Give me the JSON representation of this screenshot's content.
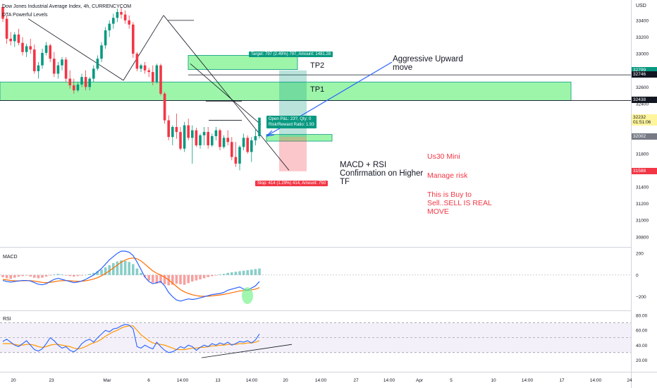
{
  "header": {
    "symbol": "Dow Jones Industrial Average Index, 4h, CURRENCYCOM",
    "indicator": "DTA Powerful Levels",
    "currency": "USD"
  },
  "chart_data": {
    "type": "candlestick",
    "price_axis": {
      "ticks": [
        "33400",
        "33200",
        "33000",
        "32800",
        "32600",
        "32400",
        "32200",
        "32000",
        "31800",
        "31600",
        "31400",
        "31200",
        "31000",
        "30800"
      ],
      "ylim": [
        30680,
        33560
      ]
    },
    "time_axis": {
      "ticks": [
        "20",
        "23",
        "Mar",
        "6",
        "14:00",
        "13",
        "14:00",
        "20",
        "14:00",
        "27",
        "14:00",
        "Apr",
        "5",
        "10",
        "14:00",
        "17",
        "14:00",
        "24"
      ]
    },
    "price_badges": [
      {
        "text": "32799",
        "color": "#089981"
      },
      {
        "text": "32746",
        "color": "#131722"
      },
      {
        "text": "32438",
        "color": "#131722"
      },
      {
        "text": "32232",
        "sub": "01:51:06",
        "color": "#fff59d"
      },
      {
        "text": "32002",
        "color": "#787b86"
      },
      {
        "text": "31588",
        "color": "#f23645"
      }
    ],
    "levels": [
      {
        "name": "TP2",
        "price": 32746
      },
      {
        "name": "TP1",
        "price": 32438
      }
    ],
    "position": {
      "entry": 32002,
      "target": 32799,
      "stop": 31588,
      "target_label": "Target: 797 (2.49%) 797, Amount: 1481.28",
      "open_label_1": "Open P&L: 23?, Qty: 0",
      "open_label_2": "Risk/Reward Ratio: 1.93",
      "stop_label": "Stop: 414 (1.29%) 414, Amount: 750"
    },
    "candles": [
      [
        33560,
        33600,
        33380,
        33420
      ],
      [
        33420,
        33460,
        33120,
        33180
      ],
      [
        33180,
        33260,
        33100,
        33150
      ],
      [
        33150,
        33260,
        33080,
        33230
      ],
      [
        33230,
        33300,
        33100,
        33130
      ],
      [
        33130,
        33200,
        32980,
        33020
      ],
      [
        33020,
        33120,
        32960,
        33090
      ],
      [
        33090,
        33180,
        33000,
        33050
      ],
      [
        33050,
        33110,
        32760,
        32790
      ],
      [
        32790,
        32900,
        32700,
        32860
      ],
      [
        32860,
        33060,
        32820,
        33010
      ],
      [
        33010,
        33140,
        32980,
        33100
      ],
      [
        33100,
        33120,
        32900,
        32940
      ],
      [
        32940,
        33020,
        32720,
        32760
      ],
      [
        32760,
        32900,
        32700,
        32860
      ],
      [
        32860,
        32960,
        32800,
        32930
      ],
      [
        32930,
        32960,
        32660,
        32700
      ],
      [
        32700,
        32800,
        32580,
        32620
      ],
      [
        32620,
        32700,
        32520,
        32560
      ],
      [
        32560,
        32660,
        32540,
        32630
      ],
      [
        32630,
        32760,
        32600,
        32720
      ],
      [
        32720,
        32800,
        32560,
        32600
      ],
      [
        32600,
        32720,
        32560,
        32700
      ],
      [
        32700,
        32860,
        32660,
        32820
      ],
      [
        32820,
        32980,
        32800,
        32940
      ],
      [
        32940,
        33140,
        32900,
        33100
      ],
      [
        33100,
        33320,
        33060,
        33280
      ],
      [
        33280,
        33400,
        33200,
        33360
      ],
      [
        33360,
        33480,
        33300,
        33430
      ],
      [
        33430,
        33540,
        33380,
        33500
      ],
      [
        33500,
        33560,
        33420,
        33470
      ],
      [
        33470,
        33520,
        33360,
        33400
      ],
      [
        33400,
        33460,
        33300,
        33350
      ],
      [
        33350,
        33380,
        32950,
        33000
      ],
      [
        33000,
        33020,
        32790,
        32820
      ],
      [
        32820,
        32880,
        32780,
        32860
      ],
      [
        32860,
        32900,
        32760,
        32800
      ],
      [
        32800,
        32830,
        32720,
        32780
      ],
      [
        32780,
        32860,
        32620,
        32660
      ],
      [
        32660,
        32880,
        32640,
        32860
      ],
      [
        32860,
        32880,
        32500,
        32520
      ],
      [
        32520,
        32540,
        32160,
        32200
      ],
      [
        32200,
        32260,
        31960,
        32000
      ],
      [
        32000,
        32140,
        31900,
        32120
      ],
      [
        32120,
        32280,
        31980,
        32060
      ],
      [
        32060,
        32120,
        31840,
        31860
      ],
      [
        31860,
        32180,
        31820,
        32140
      ],
      [
        32140,
        32220,
        31960,
        31990
      ],
      [
        31990,
        32140,
        31680,
        32080
      ],
      [
        32080,
        32110,
        31880,
        31900
      ],
      [
        31900,
        32040,
        31860,
        32020
      ],
      [
        32020,
        32120,
        31900,
        32060
      ],
      [
        32060,
        32120,
        31860,
        31900
      ],
      [
        31900,
        32040,
        31880,
        32010
      ],
      [
        32010,
        32120,
        31960,
        32080
      ],
      [
        32080,
        32100,
        31840,
        31880
      ],
      [
        31880,
        32020,
        31860,
        31990
      ],
      [
        31990,
        32080,
        31900,
        31940
      ],
      [
        31940,
        32000,
        31720,
        31760
      ],
      [
        31760,
        31940,
        31640,
        31680
      ],
      [
        31680,
        31900,
        31600,
        31880
      ],
      [
        31880,
        32040,
        31840,
        31990
      ],
      [
        31990,
        32020,
        31800,
        31820
      ],
      [
        31820,
        32000,
        31700,
        31960
      ],
      [
        31960,
        32100,
        31900,
        32010
      ],
      [
        32010,
        32232,
        31980,
        32232
      ]
    ],
    "annotations": [
      {
        "text": "Aggressive Upward",
        "text2": "move"
      },
      {
        "text": "MACD + RSI",
        "text2": "Confirmation on Higher",
        "text3": "TF"
      }
    ],
    "macd": {
      "title": "MACD",
      "ticks": [
        "200",
        "0",
        "−200"
      ],
      "ylim": [
        -300,
        220
      ],
      "histogram": [
        -20,
        -30,
        -35,
        -25,
        -15,
        -10,
        -5,
        -15,
        -25,
        -30,
        -25,
        -15,
        -5,
        5,
        10,
        5,
        -5,
        -10,
        -15,
        -10,
        -5,
        0,
        10,
        20,
        35,
        50,
        70,
        90,
        110,
        125,
        135,
        130,
        120,
        100,
        60,
        20,
        -20,
        -50,
        -70,
        -80,
        -75,
        -85,
        -95,
        -90,
        -80,
        -85,
        -90,
        -75,
        -60,
        -50,
        -40,
        -30,
        -20,
        -10,
        -5,
        5,
        10,
        20,
        25,
        30,
        35,
        40,
        45,
        50,
        55,
        60
      ],
      "macd_line": [
        -50,
        -60,
        -65,
        -60,
        -55,
        -50,
        -50,
        -55,
        -70,
        -85,
        -90,
        -80,
        -60,
        -40,
        -30,
        -40,
        -50,
        -60,
        -70,
        -65,
        -55,
        -40,
        -20,
        0,
        30,
        60,
        100,
        140,
        170,
        200,
        220,
        220,
        210,
        180,
        120,
        50,
        -20,
        -60,
        -80,
        -70,
        -60,
        -100,
        -160,
        -200,
        -230,
        -240,
        -230,
        -220,
        -225,
        -220,
        -210,
        -200,
        -190,
        -180,
        -175,
        -170,
        -160,
        -140,
        -130,
        -120,
        -110,
        -130,
        -140,
        -120,
        -100,
        -60
      ],
      "signal_line": [
        -40,
        -45,
        -50,
        -53,
        -54,
        -53,
        -52,
        -52,
        -56,
        -62,
        -68,
        -70,
        -68,
        -62,
        -55,
        -52,
        -51,
        -53,
        -56,
        -58,
        -57,
        -53,
        -46,
        -37,
        -24,
        -7,
        14,
        39,
        65,
        92,
        118,
        138,
        152,
        157,
        150,
        130,
        100,
        68,
        38,
        16,
        0,
        -20,
        -45,
        -75,
        -105,
        -135,
        -155,
        -170,
        -182,
        -190,
        -195,
        -196,
        -195,
        -192,
        -188,
        -184,
        -178,
        -171,
        -163,
        -155,
        -147,
        -143,
        -142,
        -137,
        -130,
        -116
      ]
    },
    "rsi": {
      "title": "RSI",
      "ticks": [
        "80.00",
        "60.00",
        "40.00",
        "20.00"
      ],
      "ylim": [
        6,
        84
      ],
      "rsi_line": [
        45,
        48,
        44,
        40,
        38,
        42,
        46,
        40,
        34,
        32,
        35,
        42,
        50,
        46,
        40,
        36,
        38,
        33,
        31,
        35,
        42,
        46,
        48,
        44,
        50,
        55,
        60,
        58,
        62,
        63,
        66,
        68,
        67,
        62,
        38,
        36,
        40,
        37,
        35,
        44,
        38,
        33,
        30,
        31,
        34,
        38,
        36,
        40,
        38,
        33,
        37,
        40,
        38,
        42,
        40,
        43,
        41,
        44,
        40,
        42,
        45,
        44,
        46,
        43,
        47,
        55
      ],
      "ma_line": [
        42,
        42,
        42,
        41,
        40,
        40,
        41,
        41,
        40,
        38,
        37,
        38,
        40,
        41,
        41,
        40,
        39,
        38,
        36,
        35,
        36,
        38,
        41,
        43,
        45,
        48,
        52,
        55,
        58,
        60,
        63,
        65,
        66,
        66,
        60,
        54,
        50,
        46,
        43,
        42,
        41,
        40,
        38,
        36,
        34,
        34,
        34,
        35,
        36,
        36,
        37,
        37,
        38,
        39,
        39,
        40,
        40,
        41,
        41,
        41,
        42,
        42,
        43,
        43,
        44,
        46
      ]
    }
  },
  "notes": {
    "red1": "Us30 Mini",
    "red2": "Manage risk",
    "red3": "This is Buy to",
    "red4": "Sell..SELL IS REAL",
    "red5": "MOVE"
  },
  "colors": {
    "up": "#089981",
    "down": "#f23645",
    "macd": "#2962ff",
    "signal": "#ff6d00",
    "rsi": "#2962ff",
    "rsi_ma": "#ff9800",
    "zone": "#7cf28d"
  }
}
